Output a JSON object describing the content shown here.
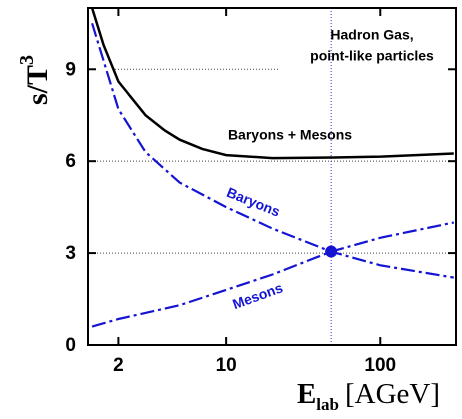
{
  "chart_data": {
    "type": "line",
    "annotations": [
      "Hadron Gas,",
      "point-like particles"
    ],
    "x_label": [
      "E",
      "lab",
      "[AGeV]"
    ],
    "y_label": [
      "s/T",
      "3"
    ],
    "x_log": true,
    "xlim": [
      1.27,
      310
    ],
    "xticks": [
      2,
      10,
      100
    ],
    "ylim": [
      0,
      11
    ],
    "yticks": [
      0,
      3,
      6,
      9
    ],
    "series": [
      {
        "name": "Baryons + Mesons",
        "color": "#000000",
        "style": "solid",
        "x": [
          1.35,
          1.6,
          2,
          3,
          4,
          5,
          7,
          10,
          20,
          50,
          100,
          300
        ],
        "values": [
          11,
          9.8,
          8.6,
          7.5,
          7.0,
          6.7,
          6.4,
          6.2,
          6.1,
          6.12,
          6.15,
          6.25
        ]
      },
      {
        "name": "Baryons",
        "color": "#1414d2",
        "style": "dashdot",
        "x": [
          1.35,
          2,
          3,
          5,
          10,
          20,
          48,
          100,
          300
        ],
        "values": [
          10.5,
          7.7,
          6.3,
          5.3,
          4.5,
          3.8,
          3.05,
          2.6,
          2.2
        ]
      },
      {
        "name": "Mesons",
        "color": "#1414d2",
        "style": "dashdot",
        "x": [
          1.35,
          2,
          5,
          10,
          20,
          48,
          100,
          300
        ],
        "values": [
          0.6,
          0.85,
          1.3,
          1.8,
          2.3,
          3.05,
          3.5,
          4.0
        ]
      }
    ],
    "reference_lines": {
      "y": [
        9,
        6,
        3
      ],
      "x": [
        48
      ]
    },
    "marker": {
      "x": 48,
      "y": 3.05,
      "color": "#1414d2"
    }
  }
}
